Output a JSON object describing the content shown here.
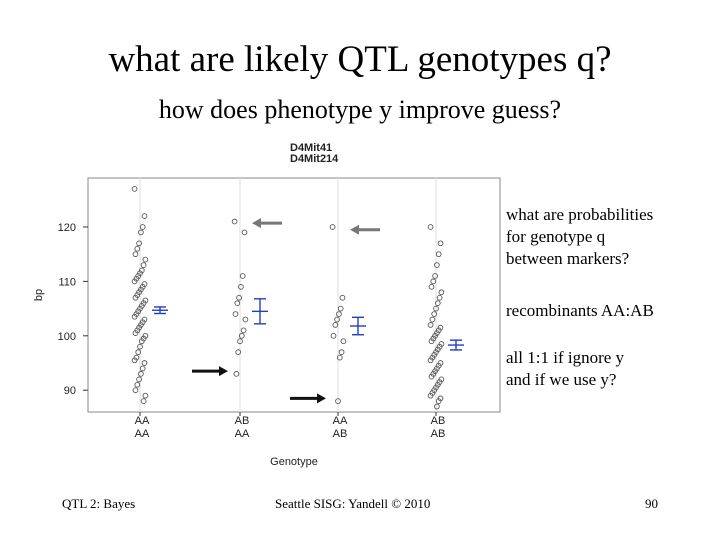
{
  "slide": {
    "title": "what are likely QTL genotypes q?",
    "subtitle": "how does phenotype y improve guess?",
    "notes": [
      "what are probabilities",
      "for genotype q",
      "between markers?",
      "recombinants AA:AB",
      "all 1:1 if ignore y",
      "and if we use y?"
    ],
    "footer_left": "QTL 2: Bayes",
    "footer_center": "Seattle SISG: Yandell © 2010",
    "page_number": "90"
  },
  "colors": {
    "points": "#555555",
    "mean_bars": "#1f3fbf",
    "arrows": "#111111",
    "gray_arrows": "#777777",
    "frame": "#888888",
    "grid": "#dddddd"
  },
  "chart_data": {
    "type": "scatter",
    "title": "",
    "marker_titles": [
      "D4Mit41",
      "D4Mit214"
    ],
    "xlabel": "Genotype",
    "ylabel": "bp",
    "ylim": [
      86,
      129
    ],
    "yticks": [
      90,
      100,
      110,
      120
    ],
    "categories": [
      {
        "top": "AA",
        "bottom": "AA"
      },
      {
        "top": "AB",
        "bottom": "AA"
      },
      {
        "top": "AA",
        "bottom": "AB"
      },
      {
        "top": "AB",
        "bottom": "AB"
      }
    ],
    "group_means": [
      {
        "group": 1,
        "mean": 104.7,
        "se": 0.6
      },
      {
        "group": 2,
        "mean": 104.5,
        "se": 2.3
      },
      {
        "group": 3,
        "mean": 101.8,
        "se": 1.6
      },
      {
        "group": 4,
        "mean": 98.3,
        "se": 0.9
      }
    ],
    "points": [
      {
        "group": 1,
        "y": [
          127,
          122,
          120,
          119,
          117,
          116,
          115,
          114,
          113,
          112,
          111.5,
          111,
          110.5,
          110,
          109.5,
          109,
          108.5,
          108,
          107.5,
          107,
          106.5,
          106,
          105.5,
          105,
          104.5,
          104,
          103.5,
          103,
          102.5,
          102,
          101.5,
          101,
          100.5,
          100,
          99.5,
          99,
          98,
          97,
          96,
          95.5,
          95,
          94,
          93,
          92,
          91,
          90,
          89,
          88
        ]
      },
      {
        "group": 2,
        "y": [
          121,
          119,
          111,
          109,
          107,
          106,
          104,
          103,
          101,
          100,
          99,
          97,
          93
        ]
      },
      {
        "group": 3,
        "y": [
          120,
          107,
          105,
          104,
          103,
          102,
          100,
          99,
          97,
          96,
          88
        ]
      },
      {
        "group": 4,
        "y": [
          120,
          117,
          115,
          113,
          111,
          110,
          109,
          108,
          107,
          106,
          105,
          104,
          103,
          102,
          101.5,
          101,
          100.5,
          100,
          99.5,
          99,
          98.5,
          98,
          97.5,
          97,
          96.5,
          96,
          95.5,
          95,
          94.5,
          94,
          93.5,
          93,
          92.5,
          92,
          91.5,
          91,
          90.5,
          90,
          89.5,
          89,
          88.5,
          88,
          87
        ]
      }
    ],
    "annotation_arrows": [
      {
        "group": 2,
        "y": 120.7,
        "direction": "left",
        "color": "gray"
      },
      {
        "group": 3,
        "y": 119.5,
        "direction": "left",
        "color": "gray"
      },
      {
        "group": 2,
        "y": 93.5,
        "direction": "right",
        "color": "black"
      },
      {
        "group": 3,
        "y": 88.5,
        "direction": "right",
        "color": "black"
      }
    ]
  }
}
